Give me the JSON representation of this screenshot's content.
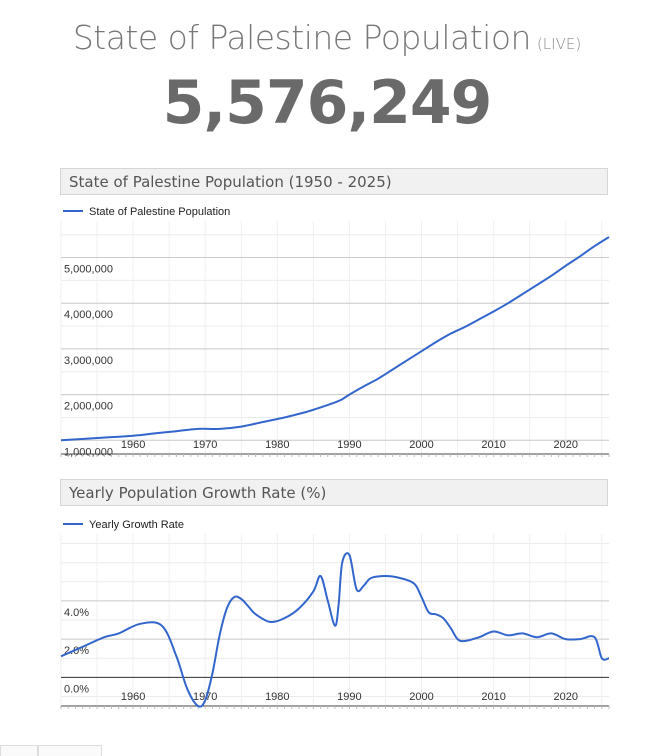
{
  "page": {
    "title": "State of Palestine Population",
    "live_label": "(LIVE)",
    "counter": "5,576,249"
  },
  "chart_data": [
    {
      "type": "line",
      "title": "State of Palestine Population (1950 - 2025)",
      "series": [
        {
          "name": "State of Palestine Population",
          "color": "#3366cc",
          "x": [
            1950,
            1955,
            1960,
            1963,
            1966,
            1969,
            1972,
            1975,
            1978,
            1981,
            1984,
            1986,
            1988,
            1989,
            1990,
            1992,
            1994,
            1996,
            1998,
            2000,
            2002,
            2004,
            2006,
            2008,
            2010,
            2012,
            2014,
            2016,
            2018,
            2020,
            2022,
            2024,
            2026
          ],
          "values": [
            1000000,
            1050000,
            1100000,
            1150000,
            1200000,
            1250000,
            1250000,
            1300000,
            1400000,
            1500000,
            1620000,
            1720000,
            1830000,
            1900000,
            2000000,
            2180000,
            2350000,
            2550000,
            2750000,
            2950000,
            3150000,
            3330000,
            3480000,
            3650000,
            3820000,
            4000000,
            4200000,
            4400000,
            4600000,
            4820000,
            5030000,
            5250000,
            5450000
          ]
        }
      ],
      "x_ticks": [
        1960,
        1970,
        1980,
        1990,
        2000,
        2010,
        2020
      ],
      "y_ticks": [
        1000000,
        2000000,
        3000000,
        4000000,
        5000000
      ],
      "y_tick_labels": [
        "1,000,000",
        "2,000,000",
        "3,000,000",
        "4,000,000",
        "5,000,000"
      ],
      "x_tick_labels": [
        "1960",
        "1970",
        "1980",
        "1990",
        "2000",
        "2010",
        "2020"
      ],
      "xlim": [
        1950,
        2026
      ],
      "ylim": [
        700000,
        5800000
      ],
      "legend": "top-left",
      "grid": true
    },
    {
      "type": "line",
      "title": "Yearly Population Growth Rate (%)",
      "series": [
        {
          "name": "Yearly Growth Rate",
          "color": "#3366cc",
          "x": [
            1950,
            1953,
            1956,
            1958,
            1961,
            1964,
            1966,
            1967.5,
            1969,
            1970,
            1971,
            1972,
            1973,
            1974,
            1975,
            1976,
            1977,
            1979,
            1981,
            1983,
            1985,
            1986,
            1987,
            1988,
            1988.5,
            1989,
            1990,
            1991,
            1992,
            1993,
            1995,
            1997,
            1999,
            2000,
            2001,
            2002,
            2003,
            2004,
            2005,
            2006,
            2008,
            2010,
            2012,
            2014,
            2016,
            2018,
            2020,
            2022,
            2024,
            2025,
            2026
          ],
          "values": [
            1.1,
            1.6,
            2.1,
            2.3,
            2.8,
            2.7,
            1.1,
            -0.6,
            -1.5,
            -1.2,
            0.2,
            2.2,
            3.6,
            4.2,
            4.1,
            3.7,
            3.3,
            2.9,
            3.1,
            3.6,
            4.5,
            5.3,
            4.0,
            2.7,
            3.8,
            6.0,
            6.4,
            4.6,
            4.8,
            5.2,
            5.3,
            5.2,
            4.9,
            4.2,
            3.4,
            3.3,
            3.1,
            2.6,
            2.0,
            1.9,
            2.1,
            2.4,
            2.2,
            2.3,
            2.1,
            2.3,
            2.0,
            2.0,
            2.1,
            1.0,
            1.0
          ]
        }
      ],
      "x_ticks": [
        1960,
        1970,
        1980,
        1990,
        2000,
        2010,
        2020
      ],
      "x_tick_labels": [
        "1960",
        "1970",
        "1980",
        "1990",
        "2000",
        "2010",
        "2020"
      ],
      "y_ticks": [
        0,
        2,
        4
      ],
      "y_tick_labels": [
        "0.0%",
        "2.0%",
        "4.0%"
      ],
      "xlim": [
        1950,
        2026
      ],
      "ylim": [
        -1.5,
        7.5
      ],
      "legend": "top-left",
      "grid": true
    }
  ]
}
